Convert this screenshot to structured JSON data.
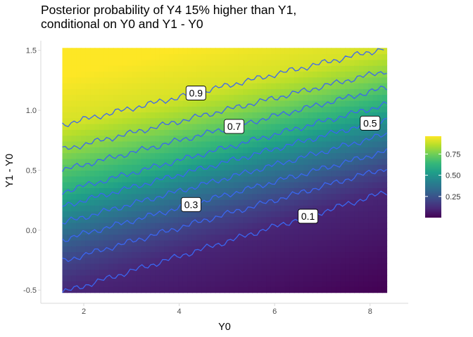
{
  "chart_data": {
    "type": "heatmap",
    "title_lines": [
      "Posterior probability of Y4 15% higher than Y1,",
      "conditional on Y0 and Y1 - Y0"
    ],
    "xlabel": "Y0",
    "ylabel": "Y1 - Y0",
    "xlim": [
      1.1,
      8.8
    ],
    "ylim": [
      -0.61,
      1.58
    ],
    "x_range": [
      1.55,
      8.35
    ],
    "y_range": [
      -0.52,
      1.52
    ],
    "xticks": [
      2,
      4,
      6,
      8
    ],
    "xtick_labels": [
      "2",
      "4",
      "6",
      "8"
    ],
    "yticks": [
      -0.5,
      0.0,
      0.5,
      1.0,
      1.5
    ],
    "ytick_labels": [
      "-0.5",
      "0.0",
      "0.5",
      "1.0",
      "1.5"
    ],
    "colorscale": "viridis",
    "colorscale_stops": [
      "#440154",
      "#482878",
      "#3e4989",
      "#31688e",
      "#26828e",
      "#1f9e89",
      "#35b779",
      "#6ece58",
      "#b5de2b",
      "#fde725"
    ],
    "legend": {
      "position": "right",
      "range": [
        0.0,
        0.96
      ],
      "ticks": [
        0.25,
        0.5,
        0.75
      ],
      "tick_labels": [
        "0.25",
        "0.50",
        "0.75"
      ]
    },
    "contours": [
      {
        "level": 0.1,
        "label": "0.1",
        "y_at_xmin": -0.52,
        "y_at_xmax": 0.32,
        "label_x": 6.7
      },
      {
        "level": 0.2,
        "label": "",
        "y_at_xmin": -0.26,
        "y_at_xmax": 0.52,
        "label_x": null
      },
      {
        "level": 0.3,
        "label": "0.3",
        "y_at_xmin": -0.08,
        "y_at_xmax": 0.66,
        "label_x": 4.25
      },
      {
        "level": 0.4,
        "label": "",
        "y_at_xmin": 0.06,
        "y_at_xmax": 0.8,
        "label_x": null
      },
      {
        "level": 0.5,
        "label": "0.5",
        "y_at_xmin": 0.2,
        "y_at_xmax": 0.93,
        "label_x": 8.0
      },
      {
        "level": 0.6,
        "label": "",
        "y_at_xmin": 0.32,
        "y_at_xmax": 1.05,
        "label_x": null
      },
      {
        "level": 0.7,
        "label": "0.7",
        "y_at_xmin": 0.5,
        "y_at_xmax": 1.19,
        "label_x": 5.15
      },
      {
        "level": 0.8,
        "label": "",
        "y_at_xmin": 0.67,
        "y_at_xmax": 1.33,
        "label_x": null
      },
      {
        "level": 0.9,
        "label": "0.9",
        "y_at_xmin": 0.88,
        "y_at_xmax": 1.52,
        "label_x": 4.35
      }
    ],
    "grid": false
  }
}
